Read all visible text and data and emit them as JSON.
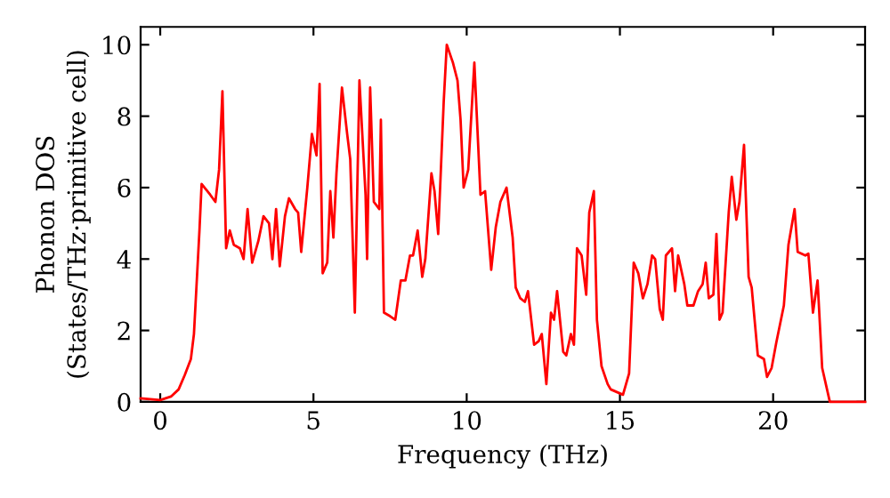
{
  "chart_data": {
    "type": "line",
    "xlabel": "Frequency (THz)",
    "ylabel": "Phonon DOS\n(States/THz·primitive cell)",
    "xlim": [
      -0.64,
      23
    ],
    "ylim": [
      0,
      10.5
    ],
    "xticks": [
      0,
      5,
      10,
      15,
      20
    ],
    "yticks": [
      0,
      2,
      4,
      6,
      8,
      10
    ],
    "grid": false,
    "marker": "none",
    "line_style": "solid",
    "series": [
      {
        "color": "#ff0000",
        "x": [
          -0.64,
          0,
          0.35,
          0.6,
          0.8,
          1.0,
          1.1,
          1.28,
          1.35,
          1.63,
          1.8,
          1.92,
          2.03,
          2.15,
          2.27,
          2.4,
          2.6,
          2.72,
          2.85,
          3.0,
          3.2,
          3.37,
          3.55,
          3.66,
          3.78,
          3.9,
          4.07,
          4.2,
          4.4,
          4.5,
          4.6,
          4.8,
          4.95,
          5.1,
          5.2,
          5.3,
          5.45,
          5.55,
          5.65,
          5.75,
          5.93,
          6.1,
          6.2,
          6.35,
          6.5,
          6.7,
          6.75,
          6.85,
          6.97,
          7.15,
          7.2,
          7.3,
          7.5,
          7.67,
          7.85,
          8.0,
          8.15,
          8.25,
          8.4,
          8.55,
          8.65,
          8.85,
          8.95,
          9.07,
          9.25,
          9.35,
          9.55,
          9.7,
          9.8,
          9.9,
          10.05,
          10.25,
          10.45,
          10.6,
          10.8,
          10.95,
          11.1,
          11.3,
          11.5,
          11.6,
          11.75,
          11.9,
          12.0,
          12.2,
          12.35,
          12.45,
          12.6,
          12.75,
          12.85,
          12.95,
          13.15,
          13.25,
          13.4,
          13.5,
          13.6,
          13.75,
          13.9,
          14.0,
          14.15,
          14.25,
          14.4,
          14.6,
          14.7,
          15.1,
          15.3,
          15.45,
          15.6,
          15.75,
          15.9,
          16.05,
          16.15,
          16.3,
          16.4,
          16.5,
          16.7,
          16.8,
          16.9,
          17.1,
          17.2,
          17.4,
          17.55,
          17.7,
          17.8,
          17.9,
          18.05,
          18.15,
          18.25,
          18.35,
          18.55,
          18.65,
          18.8,
          18.9,
          19.05,
          19.2,
          19.3,
          19.5,
          19.7,
          19.8,
          19.95,
          20.1,
          20.35,
          20.5,
          20.7,
          20.8,
          21.05,
          21.15,
          21.3,
          21.45,
          21.6,
          21.85,
          23
        ],
        "values": [
          0.1,
          0.05,
          0.15,
          0.35,
          0.75,
          1.2,
          1.9,
          4.8,
          6.1,
          5.8,
          5.6,
          6.5,
          8.7,
          4.3,
          4.8,
          4.4,
          4.3,
          4.0,
          5.4,
          3.9,
          4.5,
          5.2,
          5.0,
          4.0,
          5.4,
          3.8,
          5.2,
          5.7,
          5.4,
          5.3,
          4.2,
          6.0,
          7.5,
          6.9,
          8.9,
          3.6,
          3.9,
          5.9,
          4.6,
          6.4,
          8.8,
          7.5,
          6.8,
          2.5,
          9.0,
          5.8,
          4.0,
          8.8,
          5.6,
          5.4,
          7.9,
          2.5,
          2.4,
          2.3,
          3.4,
          3.4,
          4.1,
          4.1,
          4.8,
          3.5,
          4.0,
          6.4,
          5.9,
          4.7,
          8.4,
          10.0,
          9.5,
          9.0,
          7.9,
          6.0,
          6.5,
          9.5,
          5.8,
          5.9,
          3.7,
          4.9,
          5.6,
          6.0,
          4.6,
          3.2,
          2.9,
          2.8,
          3.1,
          1.6,
          1.7,
          1.9,
          0.5,
          2.5,
          2.3,
          3.1,
          1.4,
          1.3,
          1.9,
          1.6,
          4.3,
          4.1,
          3.0,
          5.3,
          5.9,
          2.3,
          1.0,
          0.5,
          0.35,
          0.2,
          0.8,
          3.9,
          3.6,
          2.9,
          3.3,
          4.1,
          4.0,
          2.6,
          2.3,
          4.1,
          4.3,
          3.1,
          4.1,
          3.3,
          2.7,
          2.7,
          3.1,
          3.3,
          3.9,
          2.9,
          3.0,
          4.7,
          2.3,
          2.5,
          5.3,
          6.3,
          5.1,
          5.6,
          7.2,
          3.5,
          3.2,
          1.3,
          1.2,
          0.7,
          0.95,
          1.65,
          2.7,
          4.4,
          5.4,
          4.2,
          4.1,
          4.15,
          2.5,
          3.4,
          0.95,
          0,
          0
        ]
      }
    ]
  }
}
